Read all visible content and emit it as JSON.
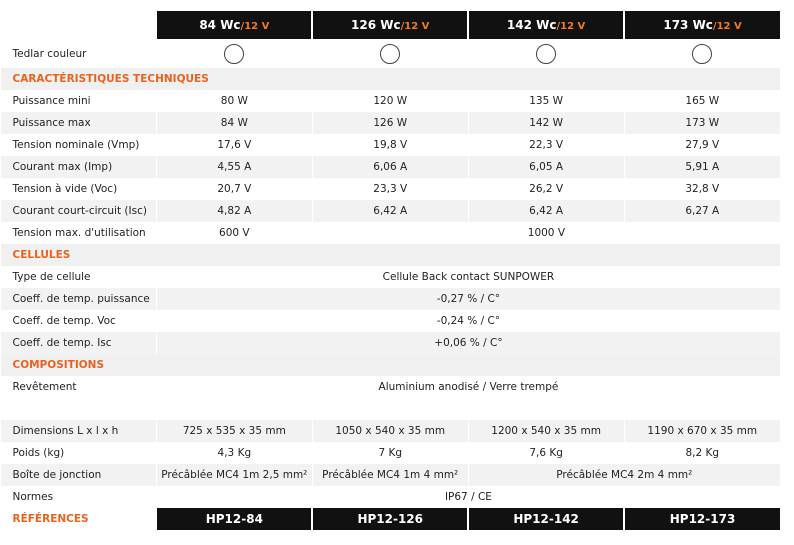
{
  "header": {
    "columns": [
      {
        "power": "84 Wc",
        "voltage": "/12 V"
      },
      {
        "power": "126 Wc",
        "voltage": "/12 V"
      },
      {
        "power": "142 Wc",
        "voltage": "/12 V"
      },
      {
        "power": "173 Wc",
        "voltage": "/12 V"
      }
    ]
  },
  "color_row": {
    "label": "Tedlar couleur"
  },
  "sections": [
    {
      "title": "CARACTÉRISTIQUES TECHNIQUES",
      "rows": [
        {
          "label": "Puissance mini",
          "cells": [
            "80 W",
            "120 W",
            "135 W",
            "165 W"
          ]
        },
        {
          "label": "Puissance max",
          "cells": [
            "84 W",
            "126 W",
            "142 W",
            "173 W"
          ]
        },
        {
          "label": "Tension nominale (Vmp)",
          "cells": [
            "17,6 V",
            "19,8 V",
            "22,3 V",
            "27,9 V"
          ]
        },
        {
          "label": "Courant max (Imp)",
          "cells": [
            "4,55 A",
            "6,06 A",
            "6,05 A",
            "5,91 A"
          ]
        },
        {
          "label": "Tension à vide (Voc)",
          "cells": [
            "20,7 V",
            "23,3 V",
            "26,2 V",
            "32,8 V"
          ]
        },
        {
          "label": "Courant court-circuit (Isc)",
          "cells": [
            "4,82 A",
            "6,42 A",
            "6,42 A",
            "6,27 A"
          ]
        },
        {
          "label": "Tension max. d'utilisation",
          "cells": [
            "600 V",
            "1000 V"
          ]
        }
      ]
    },
    {
      "title": "CELLULES",
      "rows": [
        {
          "label": "Type de cellule",
          "cells": [
            "Cellule Back contact SUNPOWER"
          ]
        },
        {
          "label": "Coeff. de temp. puissance",
          "cells": [
            "-0,27 % / C°"
          ]
        },
        {
          "label": "Coeff. de temp. Voc",
          "cells": [
            "-0,24 % / C°"
          ]
        },
        {
          "label": "Coeff. de temp. Isc",
          "cells": [
            "+0,06 % / C°"
          ]
        }
      ]
    },
    {
      "title": "COMPOSITIONS",
      "rows": [
        {
          "label": "Revêtement",
          "cells": [
            "Aluminium anodisé / Verre trempé"
          ]
        },
        {
          "label": "Dimensions L x l x h",
          "cells": [
            "725 x 535 x 35 mm",
            "1050 x 540 x 35 mm",
            "1200 x 540 x 35 mm",
            "1190 x 670 x 35 mm"
          ]
        },
        {
          "label": "Poids (kg)",
          "cells": [
            "4,3 Kg",
            "7 Kg",
            "7,6 Kg",
            "8,2 Kg"
          ]
        },
        {
          "label": "Boîte de jonction",
          "cells": [
            "Précâblée MC4 1m 2,5 mm²",
            "Précâblée MC4 1m 4 mm²",
            "Précâblée MC4 2m 4 mm²"
          ]
        },
        {
          "label": "Normes",
          "cells": [
            "IP67 / CE"
          ]
        }
      ]
    }
  ],
  "references": {
    "label": "RÉFÉRENCES",
    "cells": [
      "HP12-84",
      "HP12-126",
      "HP12-142",
      "HP12-173"
    ]
  }
}
